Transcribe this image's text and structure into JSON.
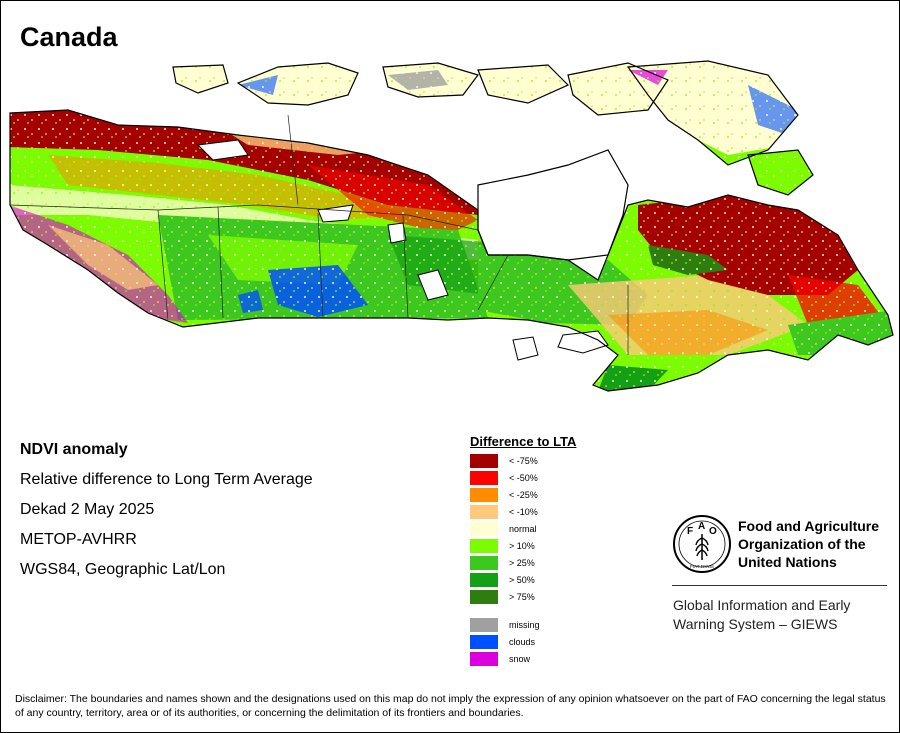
{
  "title": "Canada",
  "meta": {
    "index": "NDVI anomaly",
    "description": "Relative difference to Long Term Average",
    "period": "Dekad 2 May 2025",
    "sensor": "METOP-AVHRR",
    "projection": "WGS84, Geographic Lat/Lon"
  },
  "legend": {
    "title": "Difference to LTA",
    "classes": [
      {
        "label": "< -75%",
        "color": "#a50000"
      },
      {
        "label": "< -50%",
        "color": "#ff0000"
      },
      {
        "label": "< -25%",
        "color": "#ff8c00"
      },
      {
        "label": "< -10%",
        "color": "#ffc87a"
      },
      {
        "label": "normal",
        "color": "#ffffd2"
      },
      {
        "label": "> 10%",
        "color": "#7cfc00"
      },
      {
        "label": "> 25%",
        "color": "#3cc81e"
      },
      {
        "label": "> 50%",
        "color": "#14a014"
      },
      {
        "label": "> 75%",
        "color": "#2e7d0f"
      }
    ],
    "other": [
      {
        "label": "missing",
        "color": "#a0a0a0"
      },
      {
        "label": "clouds",
        "color": "#0050ff"
      },
      {
        "label": "snow",
        "color": "#dc00dc"
      }
    ]
  },
  "org": {
    "line1": "Food and Agriculture",
    "line2": "Organization of the",
    "line3": "United Nations",
    "giews1": "Global Information and Early",
    "giews2": "Warning System – GIEWS",
    "logo_letters": [
      "F",
      "A",
      "O"
    ],
    "logo_motto": "FIAT PANIS"
  },
  "disclaimer": "Disclaimer: The boundaries and names shown and the designations used on this map do not imply the expression of any opinion whatsoever on the part of FAO concerning the legal status of any country, territory, area or of its authorities, or concerning the delimitation of its frontiers and boundaries."
}
